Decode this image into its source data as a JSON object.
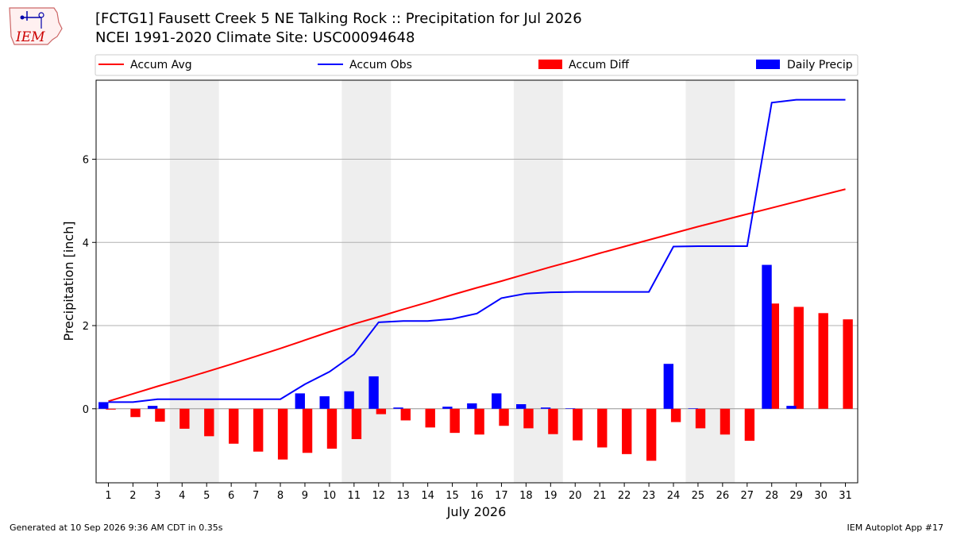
{
  "header": {
    "title_line1": "[FCTG1] Fausett Creek 5 NE Talking Rock :: Precipitation for Jul 2026",
    "title_line2": "NCEI 1991-2020 Climate Site: USC00094648",
    "logo_text": "IEM"
  },
  "legend": {
    "items": [
      {
        "label": "Accum Avg",
        "color": "#ff0000",
        "kind": "line"
      },
      {
        "label": "Accum Obs",
        "color": "#0000ff",
        "kind": "line"
      },
      {
        "label": "Accum Diff",
        "color": "#ff0000",
        "kind": "bar"
      },
      {
        "label": "Daily Precip",
        "color": "#0000ff",
        "kind": "bar"
      }
    ]
  },
  "footer": {
    "left": "Generated at 10 Sep 2026 9:36 AM CDT in 0.35s",
    "right": "IEM Autoplot App #17"
  },
  "colors": {
    "avg": "#ff0000",
    "obs": "#0000ff",
    "weekend_shade": "#eeeeee",
    "grid": "#b0b0b0"
  },
  "chart_data": {
    "type": "bar",
    "xlabel": "July 2026",
    "ylabel": "Precipitation [inch]",
    "x": [
      1,
      2,
      3,
      4,
      5,
      6,
      7,
      8,
      9,
      10,
      11,
      12,
      13,
      14,
      15,
      16,
      17,
      18,
      19,
      20,
      21,
      22,
      23,
      24,
      25,
      26,
      27,
      28,
      29,
      30,
      31
    ],
    "xlim": [
      0.5,
      31.5
    ],
    "ylim": [
      -1.78,
      7.9
    ],
    "yticks": [
      0,
      2,
      4,
      6
    ],
    "grid": "y-major",
    "legend_position": "top, above plot",
    "shaded_days": [
      [
        4,
        5
      ],
      [
        11,
        12
      ],
      [
        18,
        19
      ],
      [
        25,
        26
      ]
    ],
    "series": [
      {
        "name": "Accum Avg",
        "type": "line",
        "values": [
          0.18,
          0.36,
          0.54,
          0.71,
          0.89,
          1.07,
          1.26,
          1.45,
          1.65,
          1.85,
          2.04,
          2.21,
          2.39,
          2.56,
          2.74,
          2.91,
          3.07,
          3.24,
          3.41,
          3.57,
          3.74,
          3.9,
          4.06,
          4.22,
          4.38,
          4.53,
          4.68,
          4.83,
          4.98,
          5.13,
          5.28
        ]
      },
      {
        "name": "Accum Obs",
        "type": "line",
        "values": [
          0.16,
          0.16,
          0.23,
          0.23,
          0.23,
          0.23,
          0.23,
          0.23,
          0.59,
          0.89,
          1.31,
          2.08,
          2.11,
          2.11,
          2.16,
          2.29,
          2.66,
          2.77,
          2.8,
          2.81,
          2.81,
          2.81,
          2.81,
          3.9,
          3.91,
          3.91,
          3.91,
          7.36,
          7.43,
          7.43,
          7.43
        ]
      },
      {
        "name": "Accum Diff",
        "type": "bar",
        "values": [
          -0.02,
          -0.2,
          -0.31,
          -0.48,
          -0.66,
          -0.84,
          -1.03,
          -1.22,
          -1.06,
          -0.96,
          -0.73,
          -0.13,
          -0.28,
          -0.45,
          -0.58,
          -0.62,
          -0.41,
          -0.47,
          -0.61,
          -0.76,
          -0.93,
          -1.09,
          -1.25,
          -0.32,
          -0.47,
          -0.62,
          -0.77,
          2.53,
          2.45,
          2.3,
          2.15
        ]
      },
      {
        "name": "Daily Precip",
        "type": "bar",
        "values": [
          0.16,
          0.0,
          0.07,
          0.0,
          0.0,
          0.0,
          0.0,
          0.0,
          0.37,
          0.3,
          0.42,
          0.78,
          0.03,
          0.0,
          0.05,
          0.13,
          0.37,
          0.11,
          0.03,
          0.01,
          0.0,
          0.0,
          0.0,
          1.08,
          0.01,
          0.0,
          0.0,
          3.46,
          0.07,
          0.0,
          0.0
        ]
      }
    ]
  }
}
